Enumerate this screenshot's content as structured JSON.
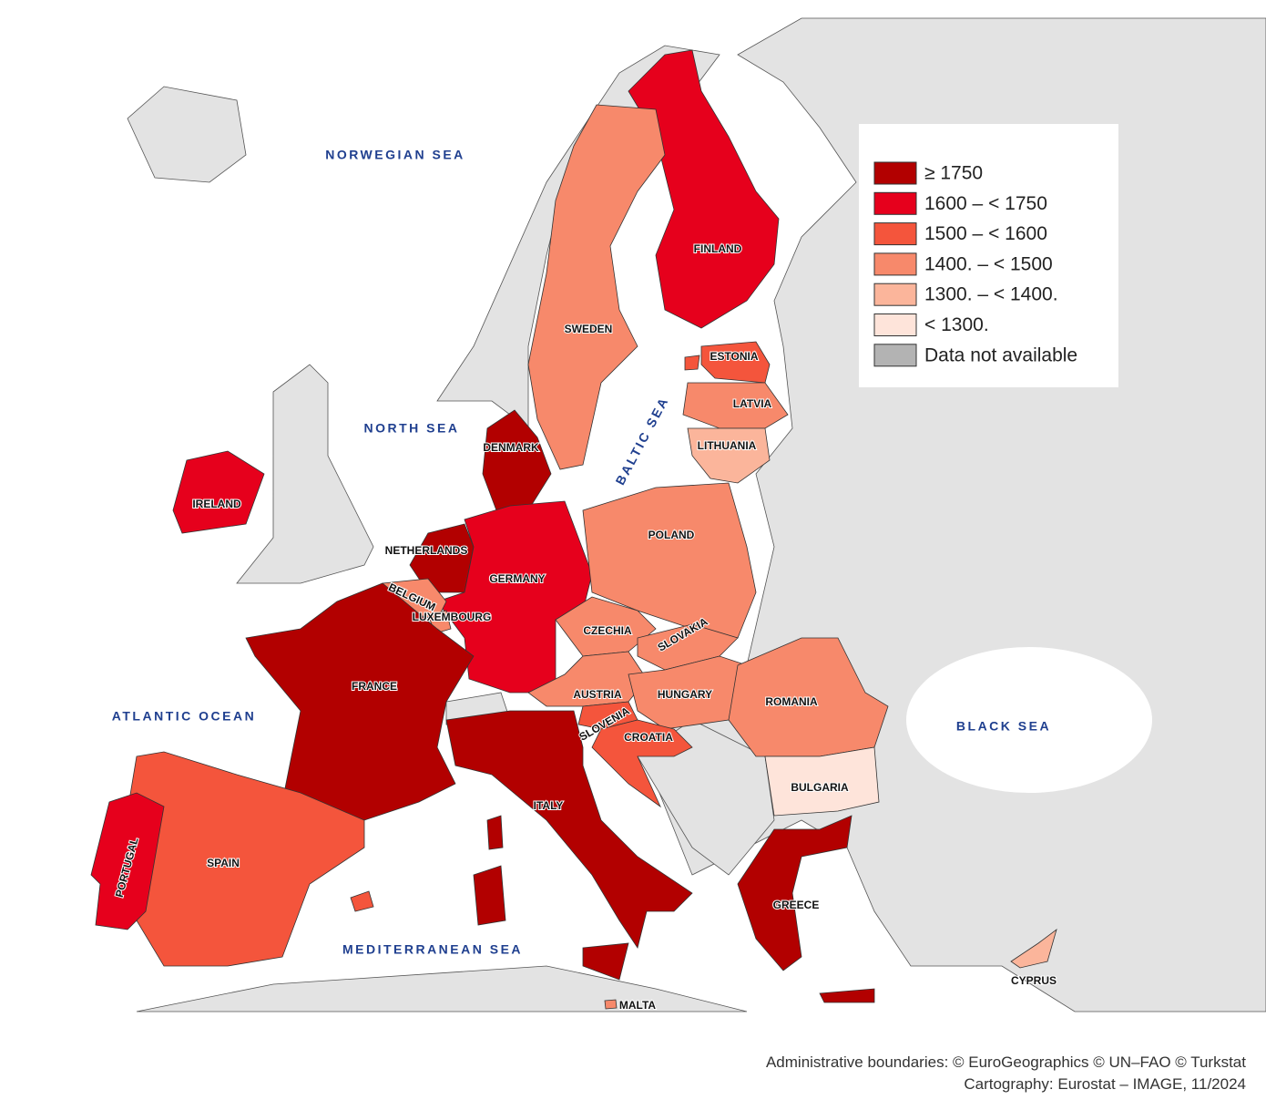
{
  "legend": {
    "items": [
      {
        "label": "≥ 1750",
        "color": "#b20000"
      },
      {
        "label": "1600 – < 1750",
        "color": "#e6001c"
      },
      {
        "label": "1500 – < 1600",
        "color": "#f4553c"
      },
      {
        "label": "1400. – < 1500",
        "color": "#f7896b"
      },
      {
        "label": "1300. – < 1400.",
        "color": "#fbb59b"
      },
      {
        "label": "< 1300.",
        "color": "#fee4da"
      },
      {
        "label": "Data not available",
        "color": "#b3b3b3"
      }
    ]
  },
  "seas": [
    {
      "label": "NORWEGIAN SEA"
    },
    {
      "label": "NORTH SEA"
    },
    {
      "label": "BALTIC SEA"
    },
    {
      "label": "ATLANTIC OCEAN"
    },
    {
      "label": "BLACK SEA"
    },
    {
      "label": "MEDITERRANEAN SEA"
    }
  ],
  "countries": [
    {
      "label": "FINLAND",
      "class": 1
    },
    {
      "label": "SWEDEN",
      "class": 3
    },
    {
      "label": "ESTONIA",
      "class": 2
    },
    {
      "label": "LATVIA",
      "class": 3
    },
    {
      "label": "LITHUANIA",
      "class": 4
    },
    {
      "label": "DENMARK",
      "class": 0
    },
    {
      "label": "IRELAND",
      "class": 1
    },
    {
      "label": "NETHERLANDS",
      "class": 0
    },
    {
      "label": "GERMANY",
      "class": 1
    },
    {
      "label": "BELGIUM",
      "class": 3
    },
    {
      "label": "LUXEMBOURG",
      "class": 3
    },
    {
      "label": "POLAND",
      "class": 3
    },
    {
      "label": "CZECHIA",
      "class": 3
    },
    {
      "label": "SLOVAKIA",
      "class": 3
    },
    {
      "label": "AUSTRIA",
      "class": 3
    },
    {
      "label": "HUNGARY",
      "class": 3
    },
    {
      "label": "ROMANIA",
      "class": 3
    },
    {
      "label": "SLOVENIA",
      "class": 2
    },
    {
      "label": "CROATIA",
      "class": 2
    },
    {
      "label": "BULGARIA",
      "class": 5
    },
    {
      "label": "FRANCE",
      "class": 0
    },
    {
      "label": "ITALY",
      "class": 0
    },
    {
      "label": "SPAIN",
      "class": 2
    },
    {
      "label": "PORTUGAL",
      "class": 1
    },
    {
      "label": "GREECE",
      "class": 0
    },
    {
      "label": "MALTA",
      "class": 3
    },
    {
      "label": "CYPRUS",
      "class": 4
    }
  ],
  "footer": {
    "line1": "Administrative boundaries: © EuroGeographics © UN–FAO © Turkstat",
    "line2": "Cartography: Eurostat – IMAGE, 11/2024"
  }
}
